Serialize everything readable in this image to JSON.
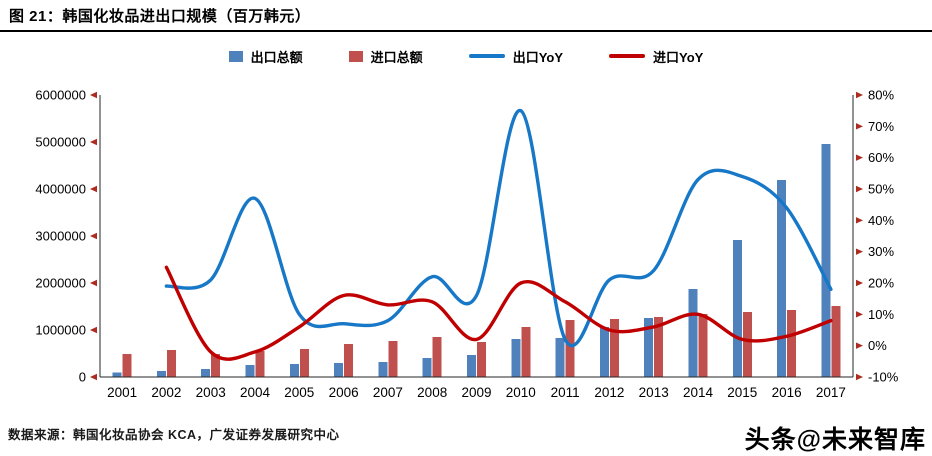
{
  "header": {
    "title": "图 21：韩国化妆品进出口规模（百万韩元）"
  },
  "legend": [
    {
      "label": "出口总额",
      "type": "bar",
      "color": "#4F81BD"
    },
    {
      "label": "进口总额",
      "type": "bar",
      "color": "#C0504D"
    },
    {
      "label": "出口YoY",
      "type": "line",
      "color": "#1878C8"
    },
    {
      "label": "进口YoY",
      "type": "line",
      "color": "#C00000"
    }
  ],
  "chart_data": {
    "type": "combo-bar-line",
    "title": "韩国化妆品进出口规模（百万韩元）",
    "grid": false,
    "legend_position": "top",
    "tick_marker_color": "#AD2B20",
    "axis_line_color": "#262626",
    "categories": [
      "2001",
      "2002",
      "2003",
      "2004",
      "2005",
      "2006",
      "2007",
      "2008",
      "2009",
      "2010",
      "2011",
      "2012",
      "2013",
      "2014",
      "2015",
      "2016",
      "2017"
    ],
    "series": [
      {
        "name": "出口总额",
        "type": "bar",
        "axis": "left",
        "color": "#4F81BD",
        "values": [
          100000,
          130000,
          175000,
          255000,
          280000,
          295000,
          320000,
          405000,
          465000,
          805000,
          830000,
          1060000,
          1255000,
          1870000,
          2915000,
          4190000,
          4955000
        ]
      },
      {
        "name": "进口总额",
        "type": "bar",
        "axis": "left",
        "color": "#C0504D",
        "values": [
          485000,
          575000,
          490000,
          555000,
          600000,
          700000,
          765000,
          855000,
          750000,
          1060000,
          1215000,
          1230000,
          1280000,
          1340000,
          1385000,
          1425000,
          1515000
        ]
      },
      {
        "name": "出口YoY",
        "type": "line",
        "axis": "right",
        "color": "#1878C8",
        "values": [
          null,
          19,
          21,
          47,
          10,
          7,
          8,
          22,
          16,
          75,
          2,
          21,
          24,
          53,
          54,
          44,
          18
        ]
      },
      {
        "name": "进口YoY",
        "type": "line",
        "axis": "right",
        "color": "#C00000",
        "values": [
          null,
          25,
          -2,
          -2,
          6,
          16,
          13,
          14,
          2,
          20,
          14,
          5,
          6,
          10,
          2,
          3,
          8
        ]
      }
    ],
    "left_axis": {
      "min": 0,
      "max": 6000000,
      "step": 1000000,
      "tick_labels": [
        "0",
        "1000000",
        "2000000",
        "3000000",
        "4000000",
        "5000000",
        "6000000"
      ]
    },
    "right_axis": {
      "min": -10,
      "max": 80,
      "step": 10,
      "tick_labels": [
        "-10%",
        "0%",
        "10%",
        "20%",
        "30%",
        "40%",
        "50%",
        "60%",
        "70%",
        "80%"
      ]
    }
  },
  "footer": {
    "source": "数据来源：韩国化妆品协会 KCA，广发证券发展研究中心",
    "watermark": "头条@未来智库"
  }
}
